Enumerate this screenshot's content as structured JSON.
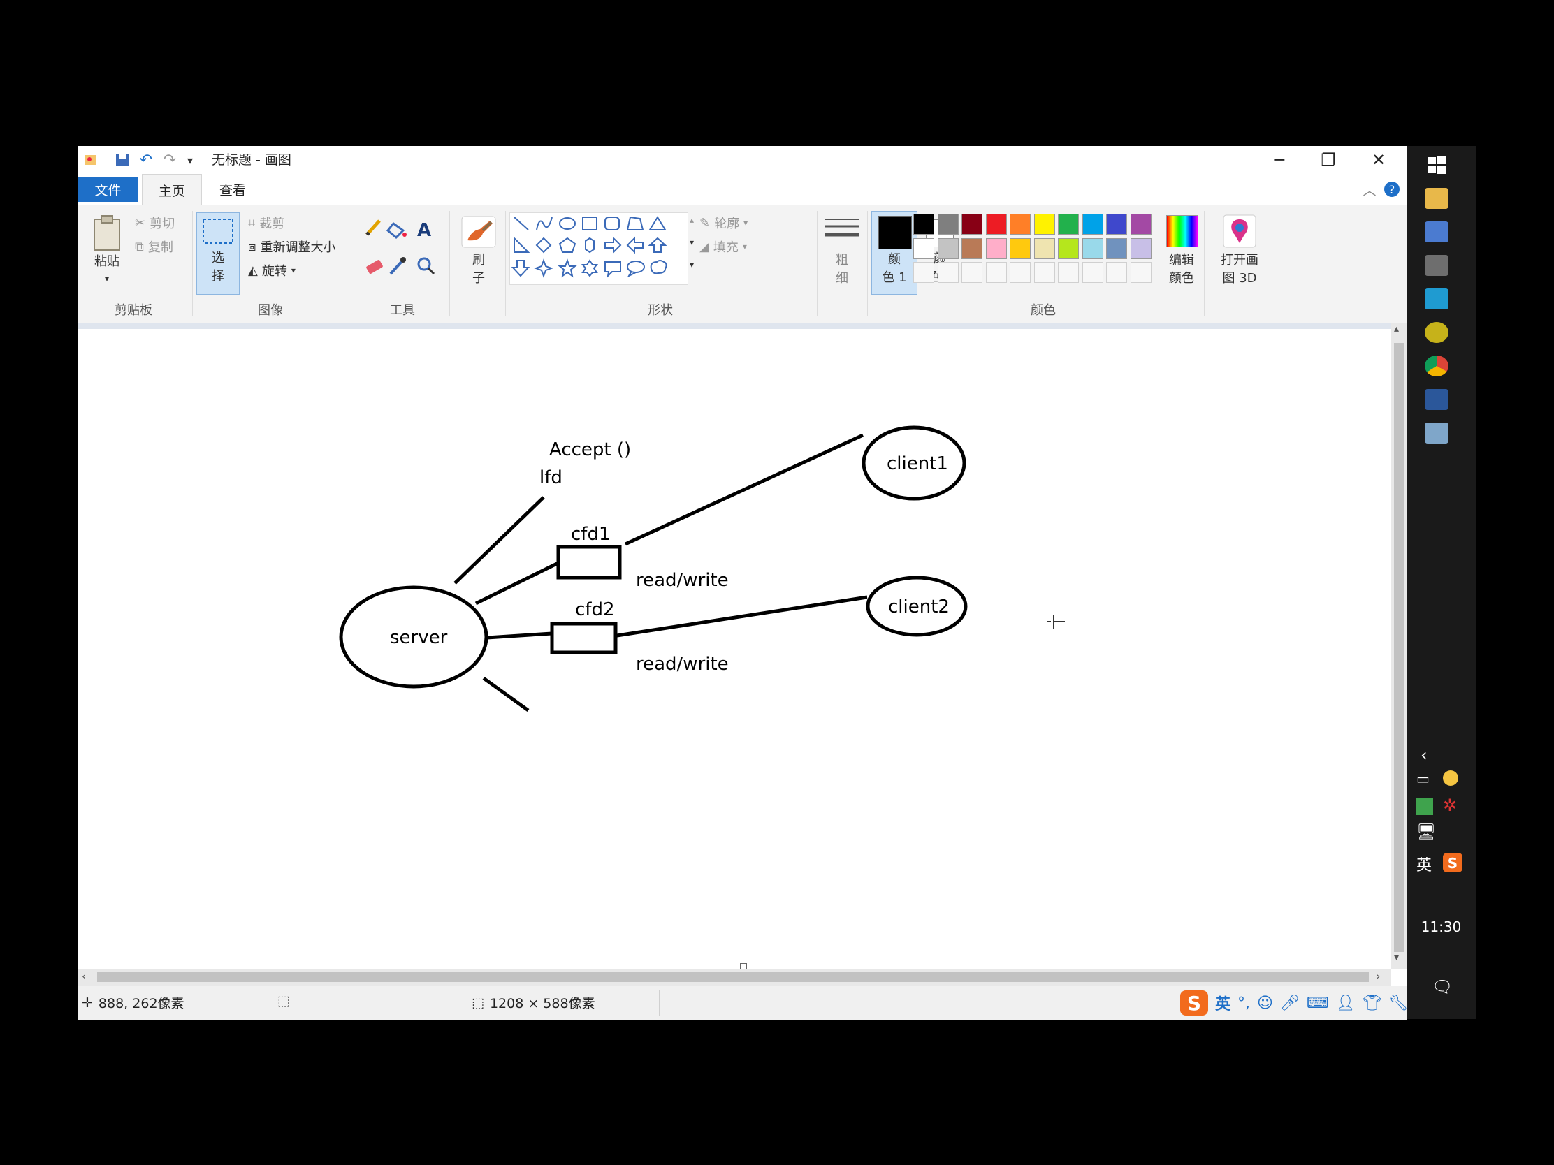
{
  "window": {
    "title": "无标题 - 画图",
    "controls": {
      "minimize": "─",
      "restore": "❐",
      "close": "✕"
    }
  },
  "tabs": [
    "文件",
    "主页",
    "查看"
  ],
  "ribbon": {
    "clipboard": {
      "paste": "粘贴",
      "cut": "剪切",
      "copy": "复制",
      "group": "剪贴板"
    },
    "image": {
      "select_1": "选",
      "select_2": "择",
      "crop": "裁剪",
      "resize": "重新调整大小",
      "rotate": "旋转",
      "group": "图像"
    },
    "tools": {
      "group": "工具"
    },
    "brush": {
      "label_1": "刷",
      "label_2": "子"
    },
    "shapes": {
      "outline": "轮廓",
      "fill": "填充",
      "group": "形状"
    },
    "size": {
      "label_1": "粗",
      "label_2": "细"
    },
    "colors": {
      "color1_a": "颜",
      "color1_b": "色 1",
      "color2_a": "颜",
      "color2_b": "色 2",
      "edit_a": "编辑",
      "edit_b": "颜色",
      "group": "颜色",
      "palette_row1": [
        "#000000",
        "#7f7f7f",
        "#880015",
        "#ed1c24",
        "#ff7f27",
        "#fff200",
        "#22b14c",
        "#00a2e8",
        "#3f48cc",
        "#a349a4"
      ],
      "palette_row2": [
        "#ffffff",
        "#c3c3c3",
        "#b97a57",
        "#ffaec9",
        "#ffc90e",
        "#efe4b0",
        "#b5e61d",
        "#99d9ea",
        "#7092be",
        "#c8bfe7"
      ]
    },
    "paint3d": {
      "label_1": "打开画",
      "label_2": "图 3D"
    }
  },
  "diagram": {
    "accept": "Accept  ()",
    "lfd": "lfd",
    "cfd1": "cfd1",
    "cfd2": "cfd2",
    "rw1": "read/write",
    "rw2": "read/write",
    "server": "server",
    "client1": "client1",
    "client2": "client2"
  },
  "status": {
    "cursor": "888, 262像素",
    "size": "1208 × 588像素"
  },
  "ime": {
    "lang": "英"
  },
  "taskbar": {
    "clock": "11:30",
    "ime_lang": "英"
  }
}
